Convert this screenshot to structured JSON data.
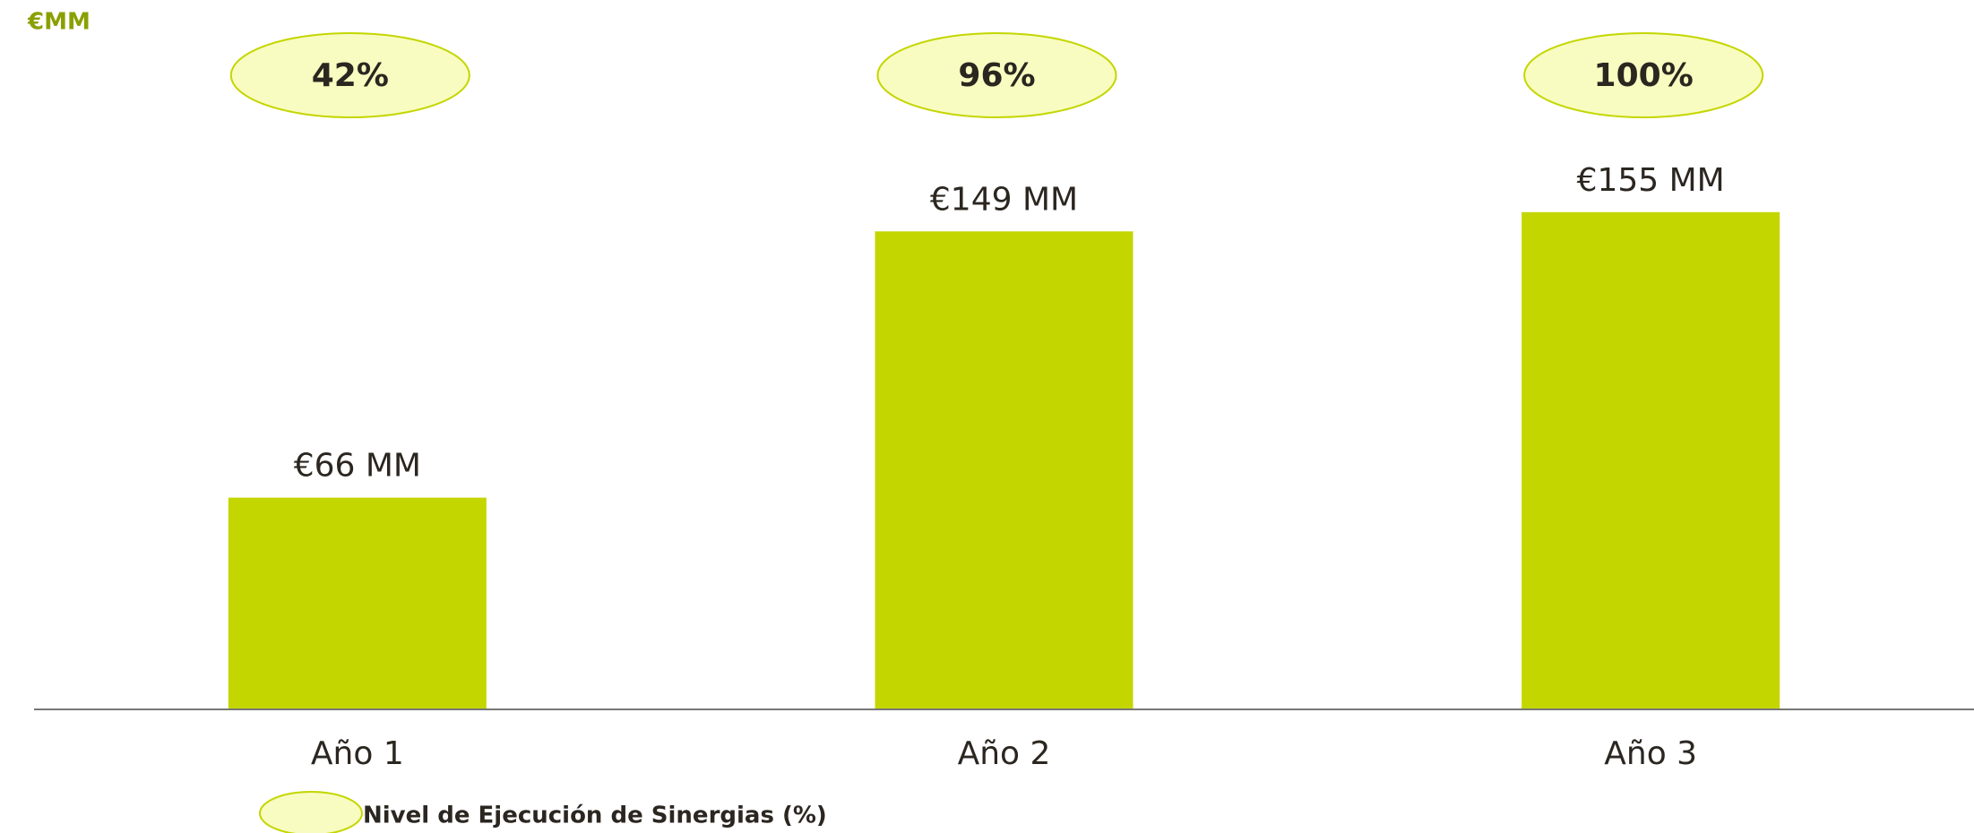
{
  "chart_data": {
    "type": "bar",
    "y_label": "€MM",
    "categories": [
      "Año 1",
      "Año 2",
      "Año 3"
    ],
    "series": [
      {
        "name": "€MM",
        "color": "#c4d600",
        "values": [
          66,
          149,
          155
        ],
        "value_labels": [
          "€66 MM",
          "€149 MM",
          "€155 MM"
        ]
      },
      {
        "name": "Nivel de Ejecución de Sinergias (%)",
        "color": "#f8fcc0",
        "values": [
          42,
          96,
          100
        ],
        "value_labels": [
          "42%",
          "96%",
          "100%"
        ]
      }
    ],
    "ylim": [
      0,
      220
    ]
  }
}
